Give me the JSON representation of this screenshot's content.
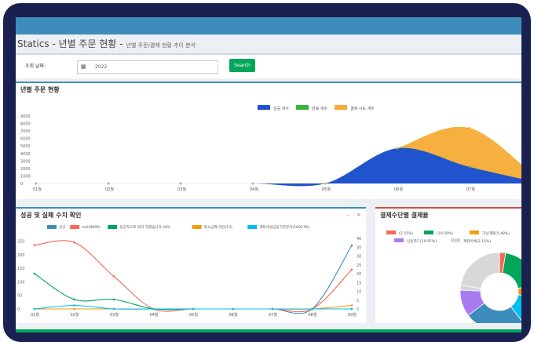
{
  "page": {
    "title": "Statics - 년별 주문 현황 -",
    "subtitle": "년별 주문/결제 현황 추이 분석"
  },
  "search": {
    "label": "조회 날짜:",
    "year_value": "2022",
    "button": "Search"
  },
  "panel1": {
    "title": "년별 주문 현황",
    "chart_data": {
      "type": "area",
      "stacked": true,
      "categories": [
        "01월",
        "02월",
        "03월",
        "04월",
        "05월",
        "06월",
        "07월",
        "08월"
      ],
      "yticks": [
        "0",
        "1000",
        "2000",
        "3000",
        "4000",
        "5000",
        "6000",
        "7000",
        "8000",
        "9000"
      ],
      "ylim": [
        0,
        9000
      ],
      "legend_position": "top-center",
      "series": [
        {
          "name": "성공 개수",
          "color": "#1f4fd6",
          "values": [
            0,
            0,
            0,
            0,
            0,
            4700,
            2200,
            0
          ]
        },
        {
          "name": "완료 개수",
          "color": "#33b53a",
          "values": [
            0,
            0,
            0,
            0,
            0,
            0,
            0,
            0
          ]
        },
        {
          "name": "결제 시도 개수",
          "color": "#f6ac35",
          "values": [
            0,
            0,
            0,
            0,
            0,
            0,
            5200,
            0
          ]
        }
      ]
    }
  },
  "panel2": {
    "title": "성공 및 실패 수치 확인",
    "tools": [
      "–",
      "×"
    ],
    "chart_data": {
      "type": "line",
      "categories": [
        "01월",
        "02월",
        "03월",
        "04월",
        "05월",
        "06월",
        "07월",
        "08월",
        "09월"
      ],
      "yticks_left": [
        "0",
        "50",
        "100",
        "150",
        "200",
        "250"
      ],
      "yticks_right": [
        "0",
        "5",
        "10",
        "15",
        "20",
        "25",
        "30",
        "35",
        "40"
      ],
      "ylim_left": [
        0,
        260
      ],
      "ylim_right": [
        0,
        40
      ],
      "legend_position": "top",
      "series": [
        {
          "name": "성공",
          "color": "#3c8dbc",
          "axis": "right",
          "values": [
            0,
            0,
            0,
            0,
            0,
            0,
            0,
            0,
            36
          ]
        },
        {
          "name": "null(9999)",
          "color": "#f56954",
          "axis": "left",
          "values": [
            235,
            245,
            120,
            0,
            0,
            0,
            0,
            0,
            145
          ]
        },
        {
          "name": "성공적으로 처리 하였습니다 (00)",
          "color": "#00a65a",
          "axis": "left",
          "values": [
            130,
            35,
            35,
            0,
            0,
            0,
            0,
            0,
            0
          ]
        },
        {
          "name": "최소금액 미만(13)",
          "color": "#f39c12",
          "axis": "right",
          "values": [
            0,
            0,
            0,
            0,
            0,
            0,
            0,
            0,
            2
          ]
        },
        {
          "name": "계좌개설금융기관문의(169278)",
          "color": "#00c0ef",
          "axis": "right",
          "values": [
            0,
            2,
            0,
            0,
            0,
            0,
            0,
            0,
            0
          ]
        }
      ]
    }
  },
  "panel3": {
    "title": "결제수단별 결제율",
    "chart_data": {
      "type": "pie",
      "donut": true,
      "legend_position": "top",
      "series": [
        {
          "name": "(2.55%)",
          "color": "#f56954",
          "value": 2.55
        },
        {
          "name": "(19.59%)",
          "color": "#00a65a",
          "value": 19.59
        },
        {
          "name": "가상계좌(5.48%)",
          "color": "#f39c12",
          "value": 5.48
        },
        {
          "name": "",
          "color": "#00c0ef",
          "value": 12
        },
        {
          "name": "",
          "color": "#3c8dbc",
          "value": 25
        },
        {
          "name": "신용카드(10.97%)",
          "color": "#a97bf0",
          "value": 10.97
        },
        {
          "name": "계좌이체(2.15%)",
          "color": "#d2d6de",
          "value": 2.15
        },
        {
          "name": "",
          "color": "#d8d8d8",
          "value": 22.26
        }
      ]
    }
  }
}
